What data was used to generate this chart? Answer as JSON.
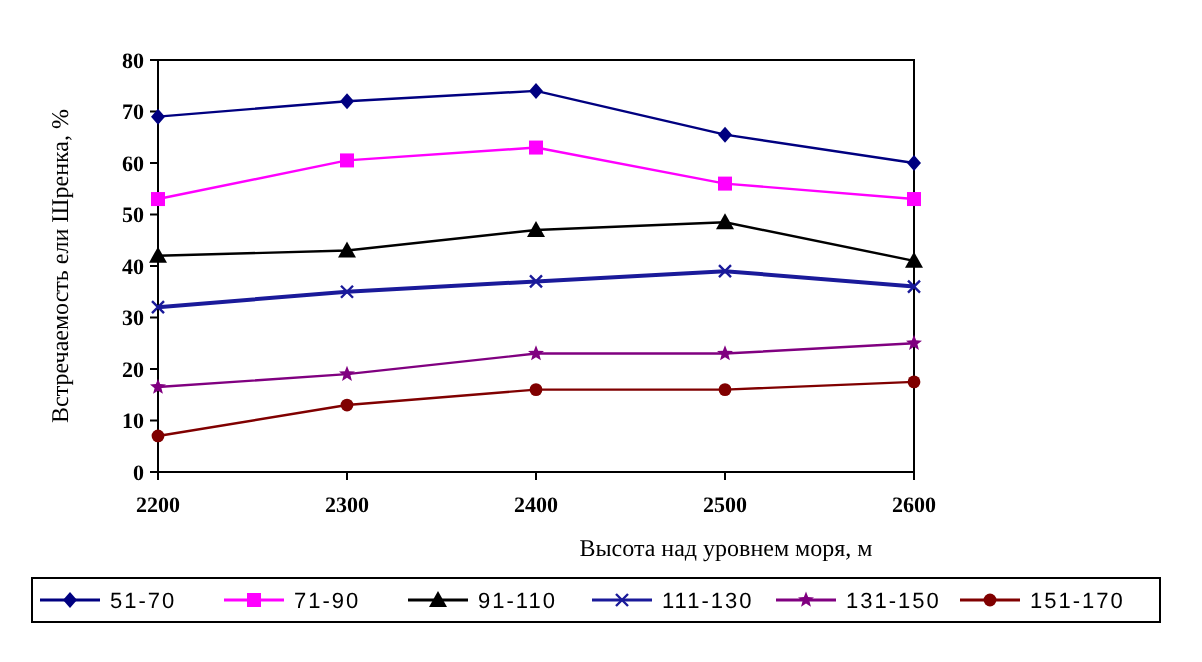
{
  "chart_data": {
    "type": "line",
    "xlabel": "Высота над уровнем моря, м",
    "ylabel": "Встречаемость ели Шренка, %",
    "x": [
      2200,
      2300,
      2400,
      2500,
      2600
    ],
    "xlim": [
      2200,
      2600
    ],
    "xticks": [
      2200,
      2300,
      2400,
      2500,
      2600
    ],
    "ylim": [
      0,
      80
    ],
    "yticks": [
      0,
      10,
      20,
      30,
      40,
      50,
      60,
      70,
      80
    ],
    "grid": false,
    "legend": "bottom",
    "line_style": "solid",
    "series": [
      {
        "name": "51-70",
        "color": "#000080",
        "marker": "diamond",
        "values": [
          69,
          72,
          74,
          65.5,
          60
        ]
      },
      {
        "name": "71-90",
        "color": "#ff00ff",
        "marker": "square",
        "values": [
          53,
          60.5,
          63,
          56,
          53
        ]
      },
      {
        "name": "91-110",
        "color": "#000000",
        "marker": "triangle",
        "values": [
          42,
          43,
          47,
          48.5,
          41
        ]
      },
      {
        "name": "111-130",
        "color": "#1a1a9a",
        "marker": "cross",
        "values": [
          32,
          35,
          37,
          39,
          36
        ]
      },
      {
        "name": "131-150",
        "color": "#800080",
        "marker": "star",
        "values": [
          16.5,
          19,
          23,
          23,
          25
        ]
      },
      {
        "name": "151-170",
        "color": "#800000",
        "marker": "circle",
        "values": [
          7,
          13,
          16,
          16,
          17.5
        ]
      }
    ]
  }
}
